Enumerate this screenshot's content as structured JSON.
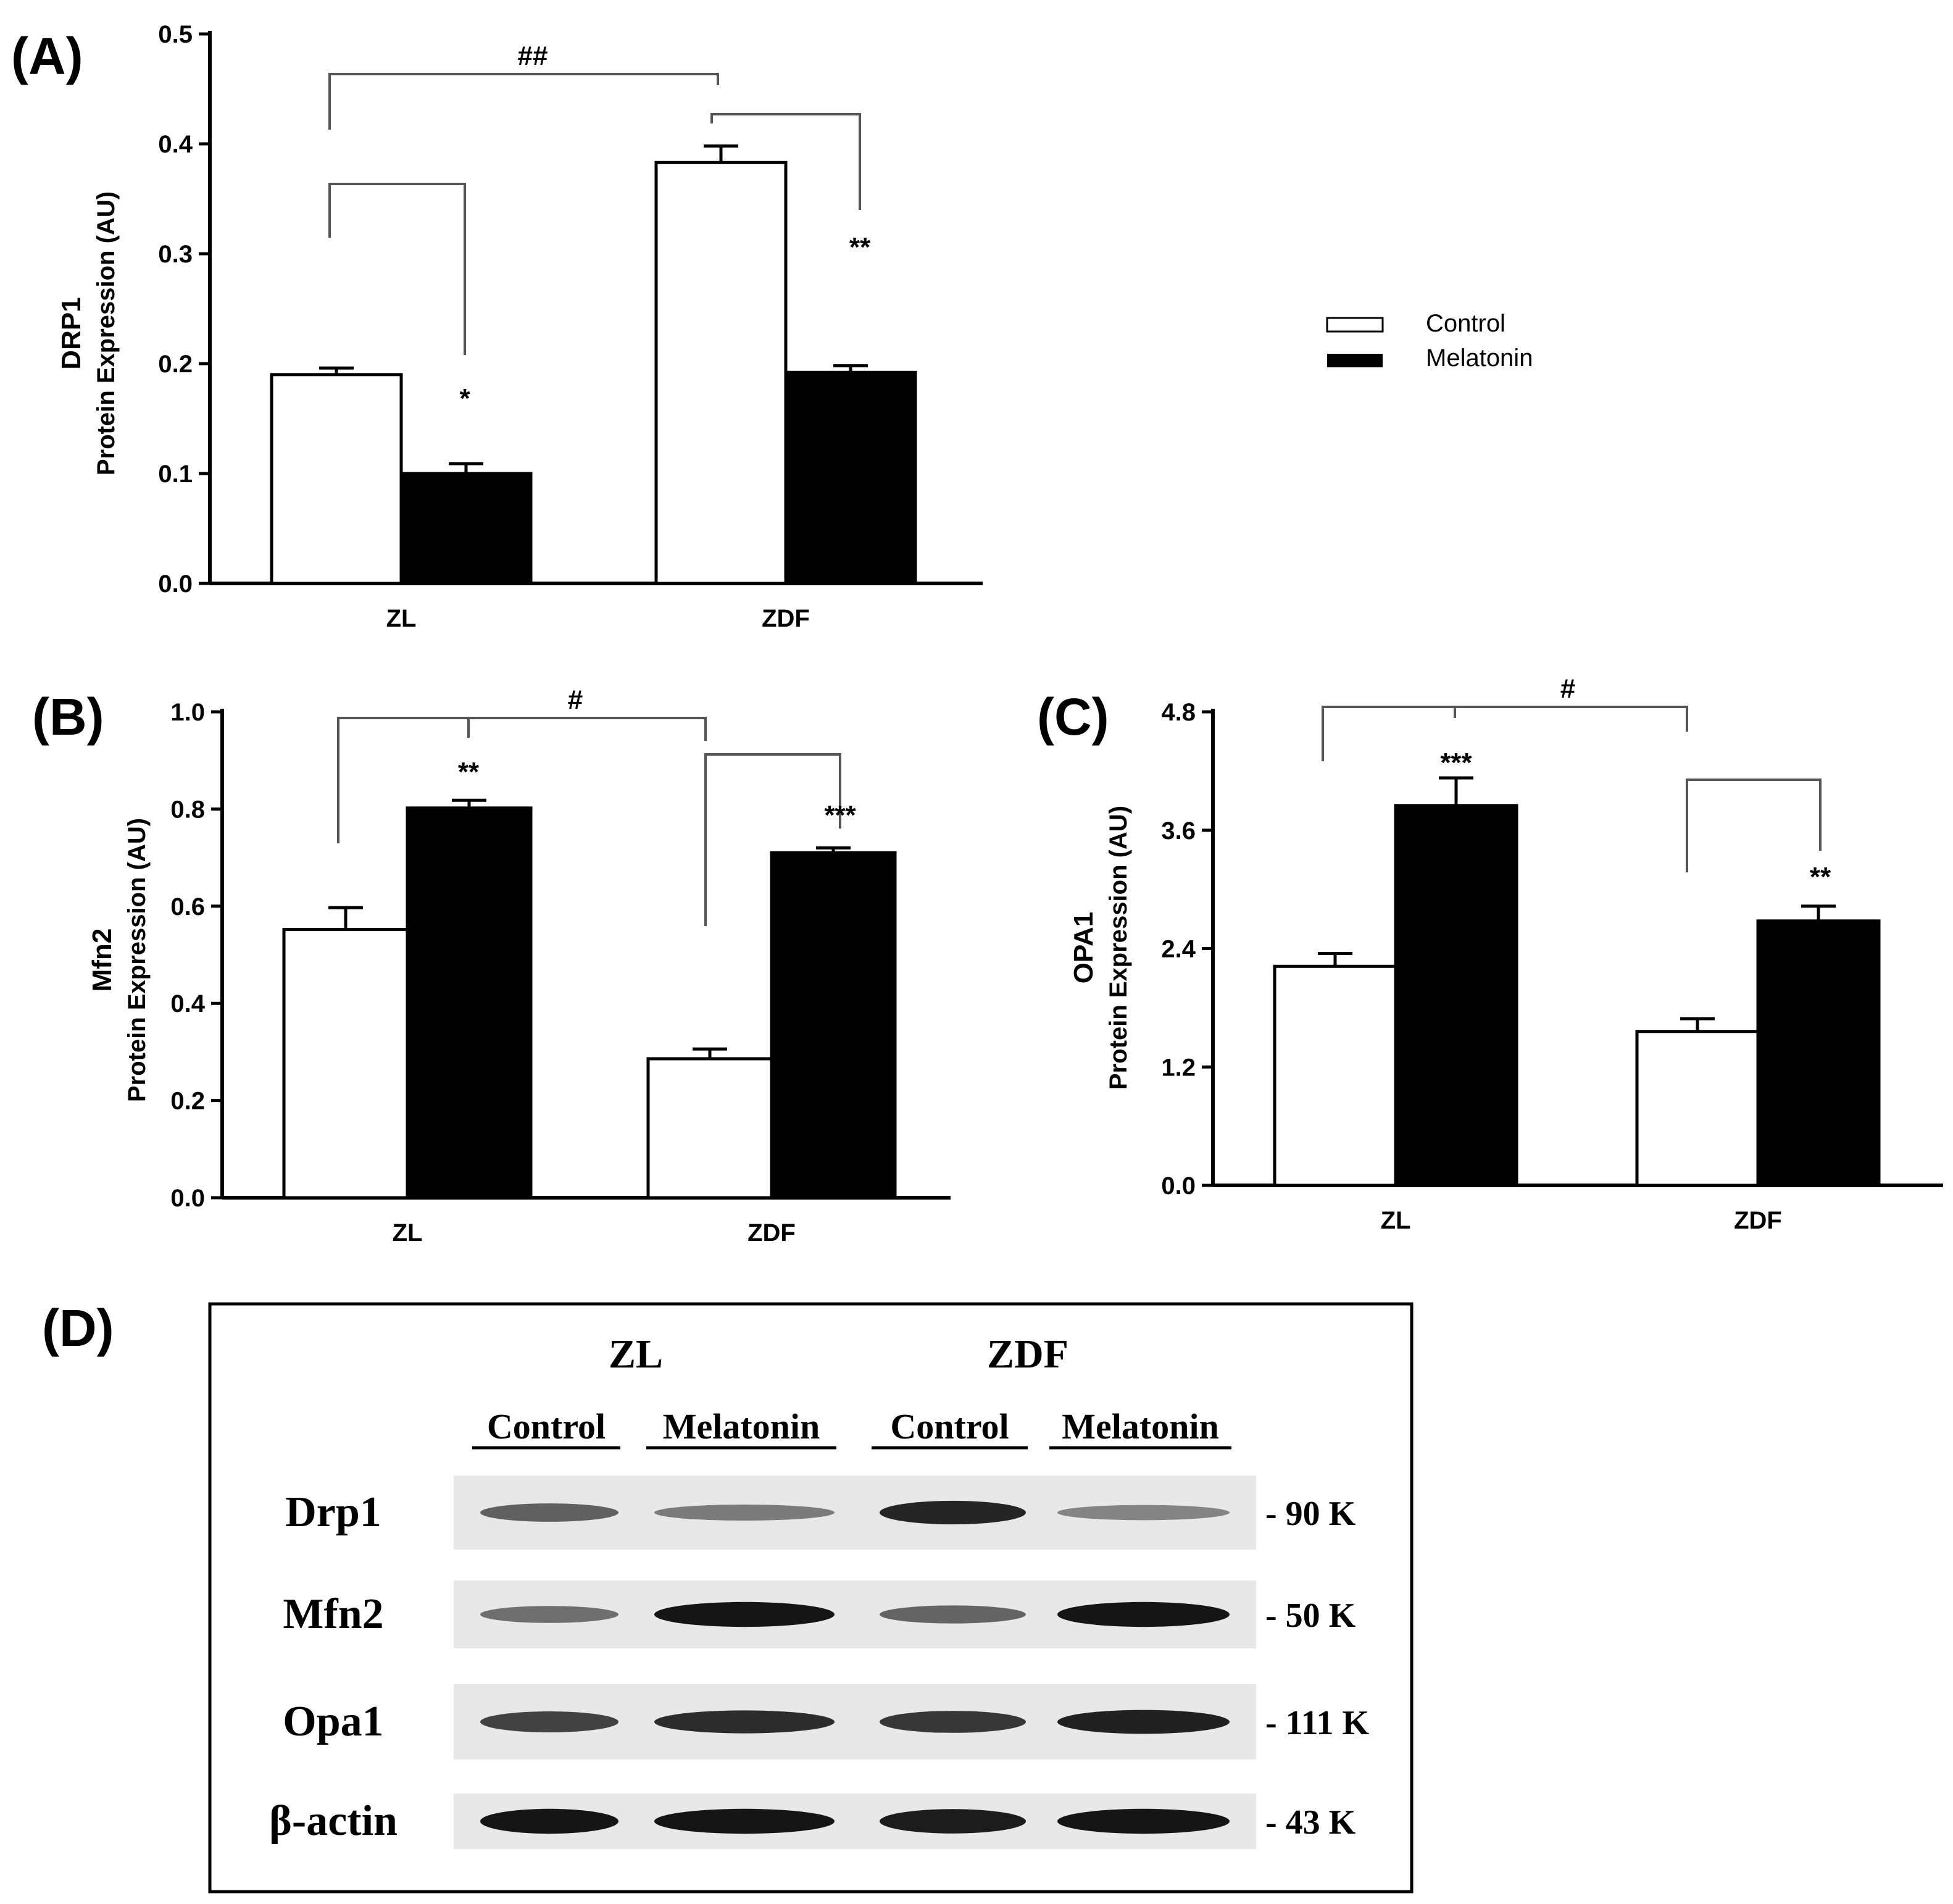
{
  "panel_labels": {
    "a": "(A)",
    "b": "(B)",
    "c": "(C)",
    "d": "(D)"
  },
  "legend": {
    "items": [
      {
        "label": "Control",
        "fill": "#ffffff"
      },
      {
        "label": "Melatonin",
        "fill": "#000000"
      }
    ]
  },
  "chart_data": [
    {
      "type": "bar",
      "panel": "A",
      "categories": [
        "ZL",
        "ZDF"
      ],
      "series": [
        {
          "name": "Control",
          "values": [
            0.19,
            0.383
          ],
          "errors": [
            0.006,
            0.015
          ]
        },
        {
          "name": "Melatonin",
          "values": [
            0.1,
            0.192
          ],
          "errors": [
            0.009,
            0.006
          ]
        }
      ],
      "ylabel_top": "DRP1",
      "ylabel": "Protein Expression (AU)",
      "ylim": [
        0,
        0.5
      ],
      "yticks": [
        "0.0",
        "0.1",
        "0.2",
        "0.3",
        "0.4",
        "0.5"
      ],
      "annotations": [
        "*",
        "**",
        "##"
      ]
    },
    {
      "type": "bar",
      "panel": "B",
      "categories": [
        "ZL",
        "ZDF"
      ],
      "series": [
        {
          "name": "Control",
          "values": [
            0.552,
            0.286
          ],
          "errors": [
            0.045,
            0.02
          ]
        },
        {
          "name": "Melatonin",
          "values": [
            0.802,
            0.71
          ],
          "errors": [
            0.016,
            0.01
          ]
        }
      ],
      "ylabel_top": "Mfn2",
      "ylabel": "Protein Expression (AU)",
      "ylim": [
        0,
        1.0
      ],
      "yticks": [
        "0.0",
        "0.2",
        "0.4",
        "0.6",
        "0.8",
        "1.0"
      ],
      "annotations": [
        "**",
        "***",
        "#"
      ]
    },
    {
      "type": "bar",
      "panel": "C",
      "categories": [
        "ZL",
        "ZDF"
      ],
      "series": [
        {
          "name": "Control",
          "values": [
            2.22,
            1.56
          ],
          "errors": [
            0.13,
            0.13
          ]
        },
        {
          "name": "Melatonin",
          "values": [
            3.85,
            2.68
          ],
          "errors": [
            0.28,
            0.15
          ]
        }
      ],
      "ylabel_top": "OPA1",
      "ylabel": "Protein Expression (AU)",
      "ylim": [
        0,
        4.8
      ],
      "yticks": [
        "0.0",
        "1.2",
        "2.4",
        "3.6",
        "4.8"
      ],
      "annotations": [
        "***",
        "**",
        "#"
      ]
    }
  ],
  "blot": {
    "groups": [
      "ZL",
      "ZDF"
    ],
    "lanes": [
      "Control",
      "Melatonin",
      "Control",
      "Melatonin"
    ],
    "rows": [
      {
        "protein": "Drp1",
        "size": "- 90 K",
        "intensity": [
          0.62,
          0.5,
          0.88,
          0.46
        ]
      },
      {
        "protein": "Mfn2",
        "size": "- 50 K",
        "intensity": [
          0.55,
          0.95,
          0.6,
          0.95
        ]
      },
      {
        "protein": "Opa1",
        "size": "- 111 K",
        "intensity": [
          0.75,
          0.85,
          0.8,
          0.9
        ]
      },
      {
        "protein": "β-actin",
        "size": "- 43 K",
        "intensity": [
          0.95,
          0.95,
          0.92,
          0.95
        ]
      }
    ]
  }
}
